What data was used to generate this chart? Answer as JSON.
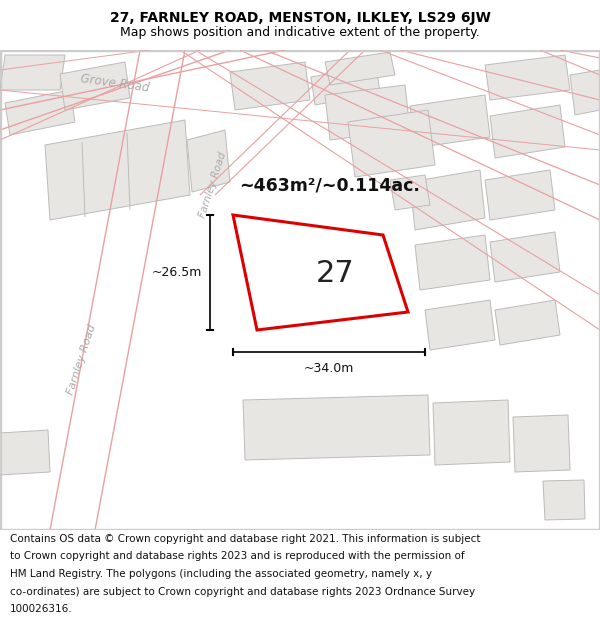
{
  "title_line1": "27, FARNLEY ROAD, MENSTON, ILKLEY, LS29 6JW",
  "title_line2": "Map shows position and indicative extent of the property.",
  "footer_lines": [
    "Contains OS data © Crown copyright and database right 2021. This information is subject",
    "to Crown copyright and database rights 2023 and is reproduced with the permission of",
    "HM Land Registry. The polygons (including the associated geometry, namely x, y",
    "co-ordinates) are subject to Crown copyright and database rights 2023 Ordnance Survey",
    "100026316."
  ],
  "map_bg": "#f7f6f4",
  "plot_color": "#dd0000",
  "plot_label": "27",
  "area_text": "~463m²/~0.114ac.",
  "dim_width": "~34.0m",
  "dim_height": "~26.5m",
  "road_outline_color": "#e8a0a0",
  "building_fill": "#e8e6e2",
  "building_edge": "#bbbbbb",
  "road_label_color": "#aaaaaa",
  "title_fontsize": 10,
  "subtitle_fontsize": 9,
  "footer_fontsize": 7.5
}
